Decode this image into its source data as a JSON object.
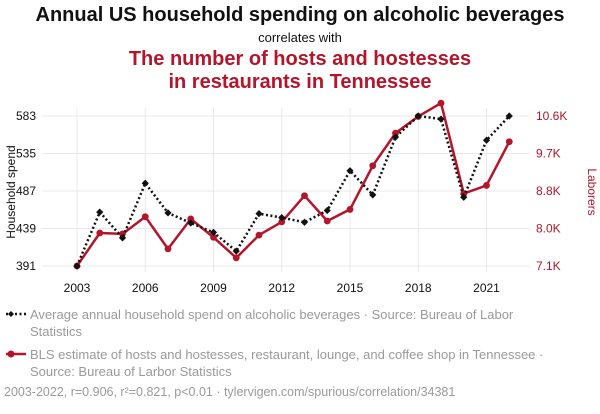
{
  "header": {
    "title": "Annual US household spending on alcoholic beverages",
    "correlates": "correlates with",
    "subtitle_line1": "The number of hosts and hostesses",
    "subtitle_line2": "in restaurants in Tennessee"
  },
  "legend": {
    "series1": "Average annual household spend on alcoholic beverages · Source: Bureau of Labor Statistics",
    "series2": "BLS estimate of hosts and hostesses, restaurant, lounge, and coffee shop in Tennessee · Source: Bureau of Larbor Statistics"
  },
  "footer": "2003-2022, r=0.906, r²=0.821, p<0.01 · tylervigen.com/spurious/correlation/34381",
  "colors": {
    "series1": "#111111",
    "series2": "#b5152b",
    "grid": "#e8e8e8"
  },
  "chart_data": {
    "type": "line",
    "title": "Annual US household spending on alcoholic beverages",
    "subtitle": "The number of hosts and hostesses in restaurants in Tennessee",
    "x": [
      2003,
      2004,
      2005,
      2006,
      2007,
      2008,
      2009,
      2010,
      2011,
      2012,
      2013,
      2014,
      2015,
      2016,
      2017,
      2018,
      2019,
      2020,
      2021,
      2022
    ],
    "x_ticks": [
      "2003",
      "2006",
      "2009",
      "2012",
      "2015",
      "2018",
      "2021"
    ],
    "xlim": [
      2003,
      2023
    ],
    "ylabel_left": "Household spend",
    "ylabel_right": "Laborers",
    "y_left_ticks": [
      "391",
      "439",
      "487",
      "535",
      "583"
    ],
    "y_left_range": [
      391,
      583
    ],
    "y_right_ticks": [
      "7.1K",
      "8.0K",
      "8.8K",
      "9.7K",
      "10.6K"
    ],
    "y_right_range": [
      7100,
      10600
    ],
    "series": [
      {
        "name": "Average annual household spend on alcoholic beverages",
        "axis": "left",
        "style": "dotted-diamond",
        "values": [
          391,
          460,
          427,
          497,
          459,
          446,
          434,
          410,
          458,
          453,
          447,
          462,
          513,
          482,
          556,
          583,
          579,
          479,
          552,
          583
        ]
      },
      {
        "name": "BLS estimate of hosts and hostesses in Tennessee",
        "axis": "right",
        "style": "solid-circle",
        "values": [
          7100,
          7870,
          7850,
          8250,
          7500,
          8200,
          7770,
          7290,
          7820,
          8130,
          8740,
          8150,
          8420,
          9440,
          10200,
          10590,
          10900,
          8790,
          8980,
          10000
        ]
      }
    ]
  }
}
